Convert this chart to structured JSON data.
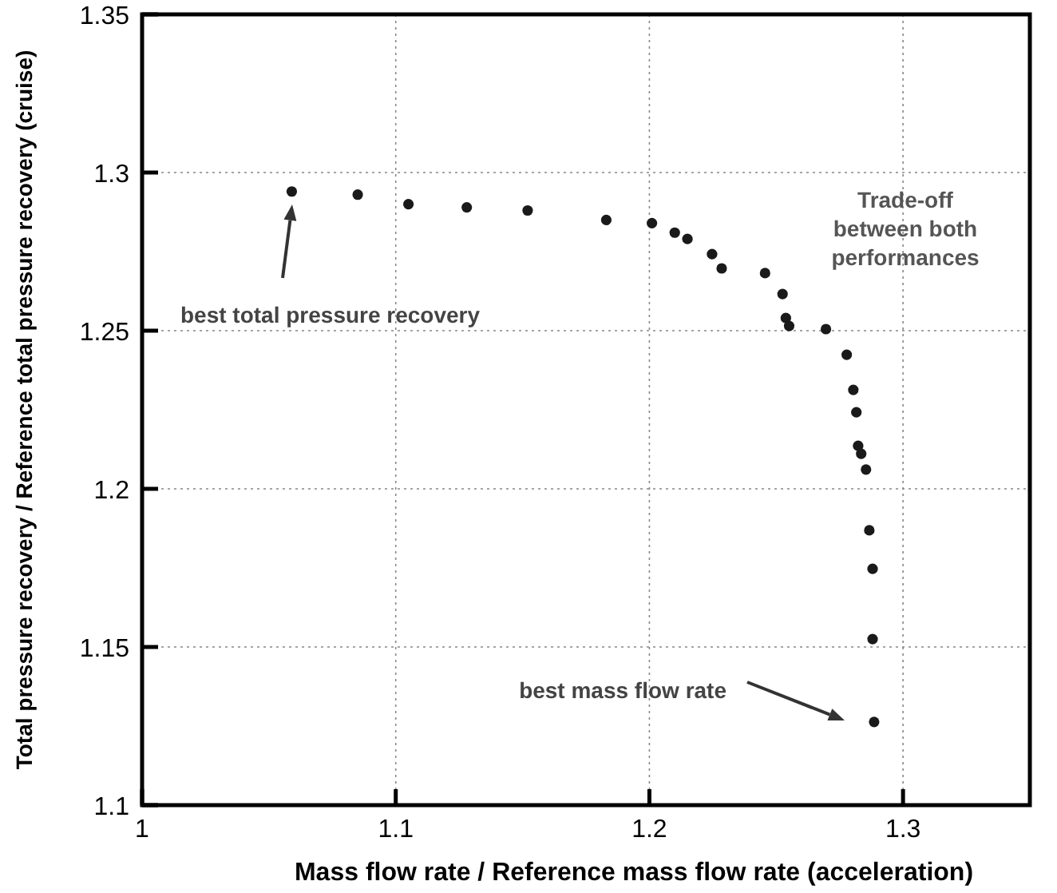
{
  "chart_data": {
    "type": "scatter",
    "xlabel": "Mass flow rate / Reference mass flow rate (acceleration)",
    "ylabel": "Total pressure recovery / Reference total pressure recovery (cruise)",
    "x": [
      1.059,
      1.085,
      1.105,
      1.128,
      1.152,
      1.183,
      1.201,
      1.21,
      1.215,
      1.2247,
      1.2285,
      1.2456,
      1.2525,
      1.2538,
      1.2551,
      1.2696,
      1.2778,
      1.2804,
      1.2816,
      1.2823,
      1.2835,
      1.2854,
      1.2867,
      1.288,
      1.288,
      1.2886
    ],
    "series": [
      {
        "color": "#1a1a1a",
        "values": [
          1.294,
          1.293,
          1.29,
          1.289,
          1.288,
          1.285,
          1.284,
          1.281,
          1.279,
          1.2742,
          1.2697,
          1.2682,
          1.2616,
          1.254,
          1.2515,
          1.2505,
          1.2424,
          1.2313,
          1.2242,
          1.2136,
          1.2111,
          1.2061,
          1.1869,
          1.1747,
          1.1525,
          1.1263
        ]
      }
    ],
    "xlim": [
      1,
      1.35
    ],
    "xticks": [
      1,
      1.1,
      1.2,
      1.3
    ],
    "ylim": [
      1.1,
      1.35
    ],
    "yticks": [
      1.1,
      1.15,
      1.2,
      1.25,
      1.3,
      1.35
    ],
    "grid": true,
    "marker": "circle",
    "annotations": [
      "best total pressure recovery",
      "best mass flow rate",
      "Trade-off\nbetween both\nperformances"
    ]
  }
}
